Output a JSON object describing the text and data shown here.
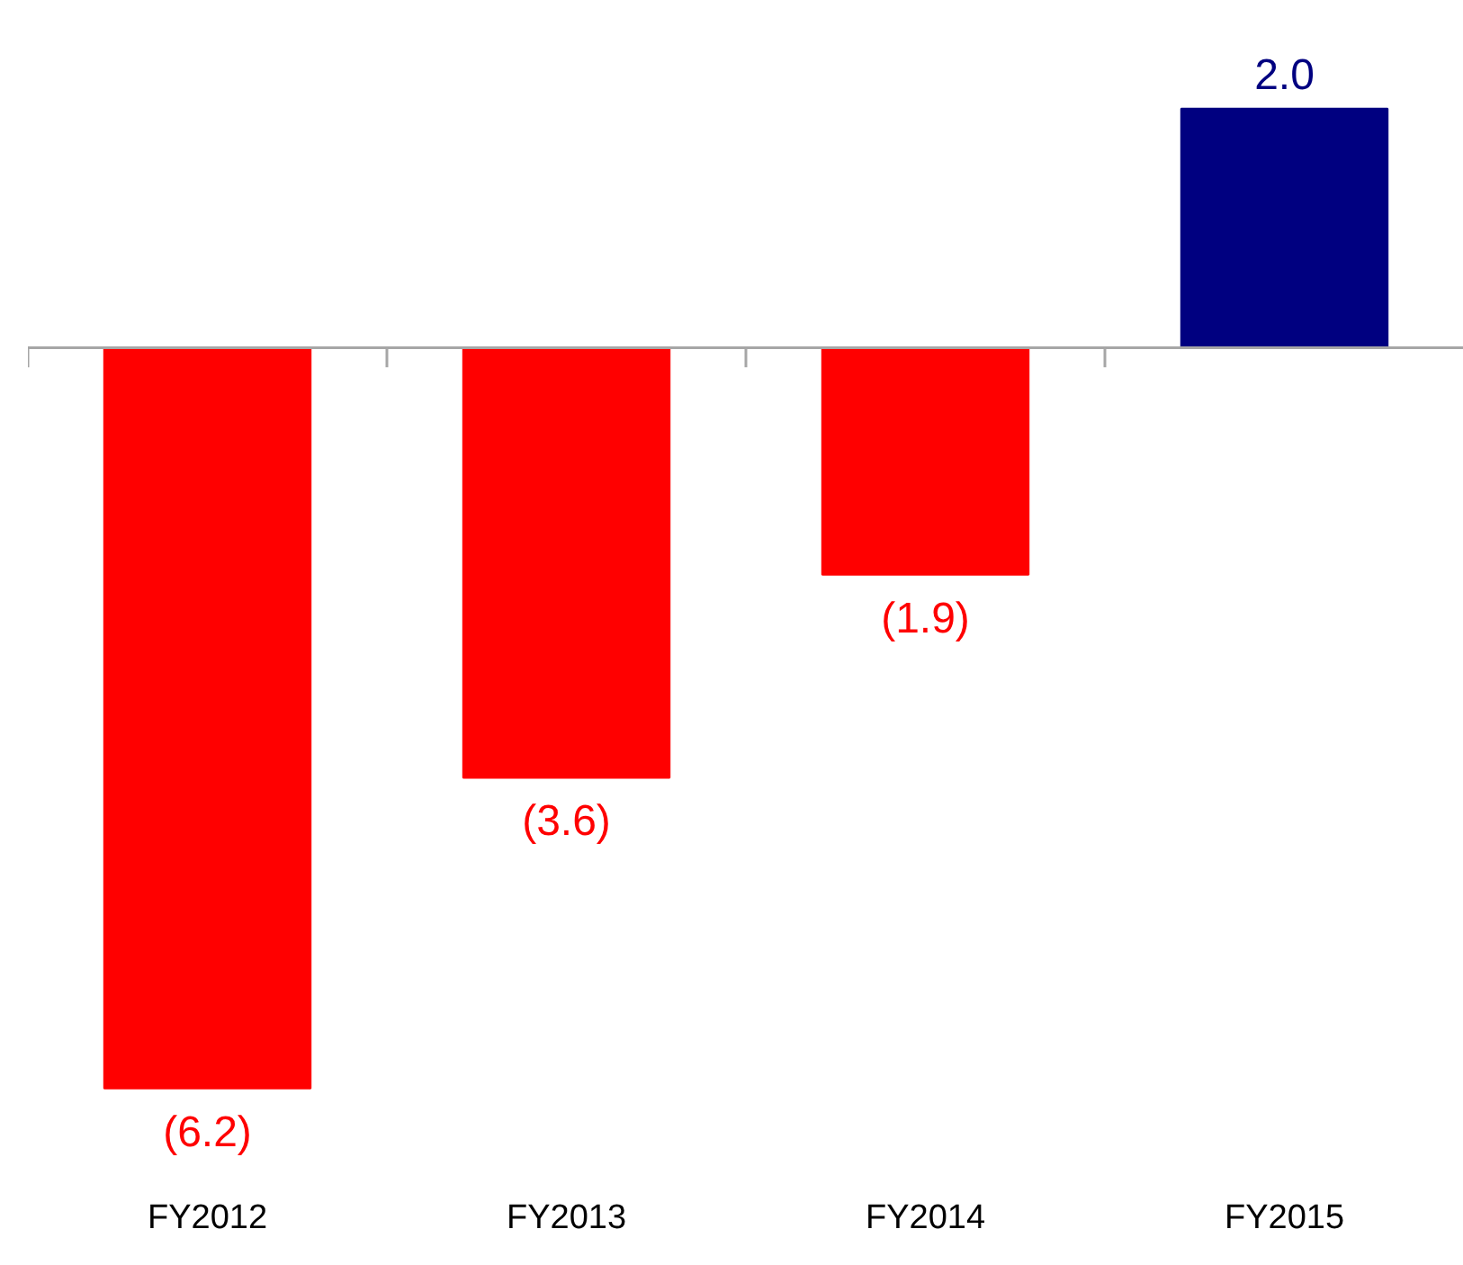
{
  "chart_data": {
    "type": "bar",
    "categories": [
      "FY2012",
      "FY2013",
      "FY2014",
      "FY2015"
    ],
    "values": [
      -6.2,
      -3.6,
      -1.9,
      2.0
    ],
    "colors": [
      "#ff0000",
      "#ff0000",
      "#ff0000",
      "#000080"
    ],
    "value_labels": [
      "(6.2)",
      "(3.6)",
      "(1.9)",
      "2.0"
    ],
    "grid": false
  }
}
